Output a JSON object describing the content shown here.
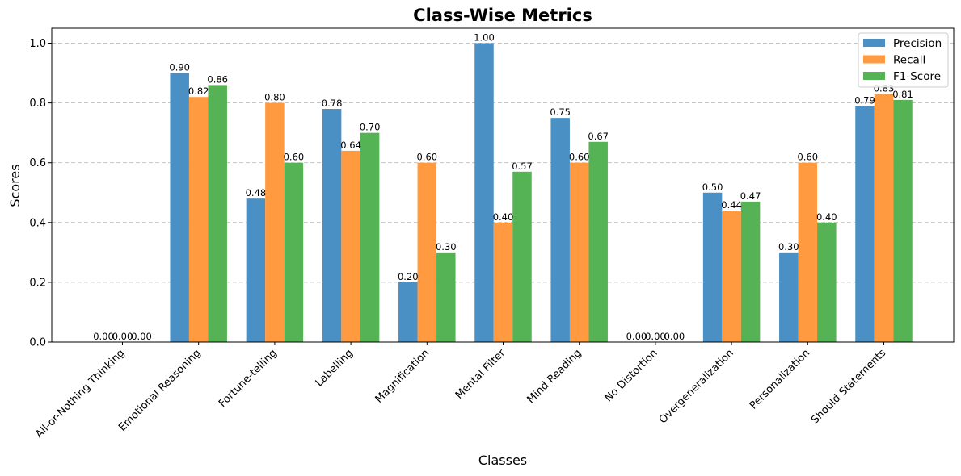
{
  "chart_data": {
    "type": "bar",
    "title": "Class-Wise Metrics",
    "xlabel": "Classes",
    "ylabel": "Scores",
    "ylim": [
      0,
      1.05
    ],
    "yticks": [
      "0.0",
      "0.2",
      "0.4",
      "0.6",
      "0.8",
      "1.0"
    ],
    "grid": "y-dashed",
    "legend_position": "top-right",
    "categories": [
      "All-or-Nothing Thinking",
      "Emotional Reasoning",
      "Fortune-telling",
      "Labelling",
      "Magnification",
      "Mental Filter",
      "Mind Reading",
      "No Distortion",
      "Overgeneralization",
      "Personalization",
      "Should Statements"
    ],
    "series": [
      {
        "name": "Precision",
        "color": "#4a90c4",
        "values": [
          0.0,
          0.9,
          0.48,
          0.78,
          0.2,
          1.0,
          0.75,
          0.0,
          0.5,
          0.3,
          0.79
        ],
        "labels": [
          "0.00",
          "0.90",
          "0.48",
          "0.78",
          "0.20",
          "1.00",
          "0.75",
          "0.00",
          "0.50",
          "0.30",
          "0.79"
        ]
      },
      {
        "name": "Recall",
        "color": "#ff9a40",
        "values": [
          0.0,
          0.82,
          0.8,
          0.64,
          0.6,
          0.4,
          0.6,
          0.0,
          0.44,
          0.6,
          0.83
        ],
        "labels": [
          "0.00",
          "0.82",
          "0.80",
          "0.64",
          "0.60",
          "0.40",
          "0.60",
          "0.00",
          "0.44",
          "0.60",
          "0.83"
        ]
      },
      {
        "name": "F1-Score",
        "color": "#55b255",
        "values": [
          0.0,
          0.86,
          0.6,
          0.7,
          0.3,
          0.57,
          0.67,
          0.0,
          0.47,
          0.4,
          0.81
        ],
        "labels": [
          "0.00",
          "0.86",
          "0.60",
          "0.70",
          "0.30",
          "0.57",
          "0.67",
          "0.00",
          "0.47",
          "0.40",
          "0.81"
        ]
      }
    ]
  }
}
